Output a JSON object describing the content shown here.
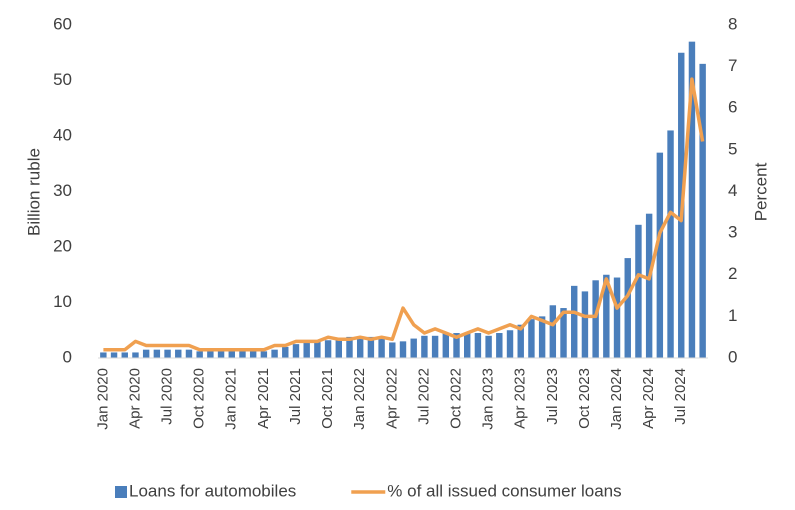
{
  "chart_data": {
    "type": "bar_line",
    "categories": [
      "Jan 2020",
      null,
      null,
      "Apr 2020",
      null,
      null,
      "Jul 2020",
      null,
      null,
      "Oct 2020",
      null,
      null,
      "Jan 2021",
      null,
      null,
      "Apr 2021",
      null,
      null,
      "Jul 2021",
      null,
      null,
      "Oct 2021",
      null,
      null,
      "Jan 2022",
      null,
      null,
      "Apr 2022",
      null,
      null,
      "Jul 2022",
      null,
      null,
      "Oct 2022",
      null,
      null,
      "Jan 2023",
      null,
      null,
      "Apr 2023",
      null,
      null,
      "Jul 2023",
      null,
      null,
      "Oct 2023",
      null,
      null,
      "Jan 2024",
      null,
      null,
      "Apr 2024",
      null,
      null,
      "Jul 2024",
      null,
      null
    ],
    "series": [
      {
        "name": "Loans for automobiles",
        "color": "#4a7ebb",
        "values": [
          1,
          1,
          1,
          1,
          1.5,
          1.5,
          1.5,
          1.5,
          1.5,
          1.2,
          1.2,
          1.2,
          1.2,
          1.2,
          1.2,
          1.2,
          1.5,
          2,
          2.5,
          2.8,
          3,
          3.2,
          3.5,
          3.8,
          3.5,
          3.8,
          3.5,
          2.8,
          3,
          3.5,
          4,
          4,
          4.5,
          4.5,
          4.5,
          4.5,
          4,
          4.5,
          5,
          6,
          7,
          7.5,
          9.5,
          9,
          13,
          12,
          14,
          15,
          14.5,
          18,
          24,
          26,
          37,
          41,
          55,
          57,
          53
        ]
      },
      {
        "name": "% of all issued consumer loans",
        "color": "#f0a050",
        "axis": "y2",
        "values": [
          0.2,
          0.2,
          0.2,
          0.4,
          0.3,
          0.3,
          0.3,
          0.3,
          0.3,
          0.2,
          0.2,
          0.2,
          0.2,
          0.2,
          0.2,
          0.2,
          0.3,
          0.3,
          0.4,
          0.4,
          0.4,
          0.5,
          0.45,
          0.45,
          0.5,
          0.45,
          0.5,
          0.45,
          1.2,
          0.8,
          0.6,
          0.7,
          0.6,
          0.5,
          0.6,
          0.7,
          0.6,
          0.7,
          0.8,
          0.7,
          1.0,
          0.9,
          0.8,
          1.1,
          1.1,
          1.0,
          1.0,
          1.9,
          1.2,
          1.5,
          2.0,
          1.9,
          3.0,
          3.5,
          3.3,
          6.7,
          5.2
        ]
      }
    ],
    "ylabel": "Billion ruble",
    "y2label": "Percent",
    "ylim": [
      0,
      60
    ],
    "yticks": [
      0,
      10,
      20,
      30,
      40,
      50,
      60
    ],
    "y2lim": [
      0,
      8
    ],
    "y2ticks": [
      0,
      1,
      2,
      3,
      4,
      5,
      6,
      7,
      8
    ],
    "legend": "bottom"
  }
}
